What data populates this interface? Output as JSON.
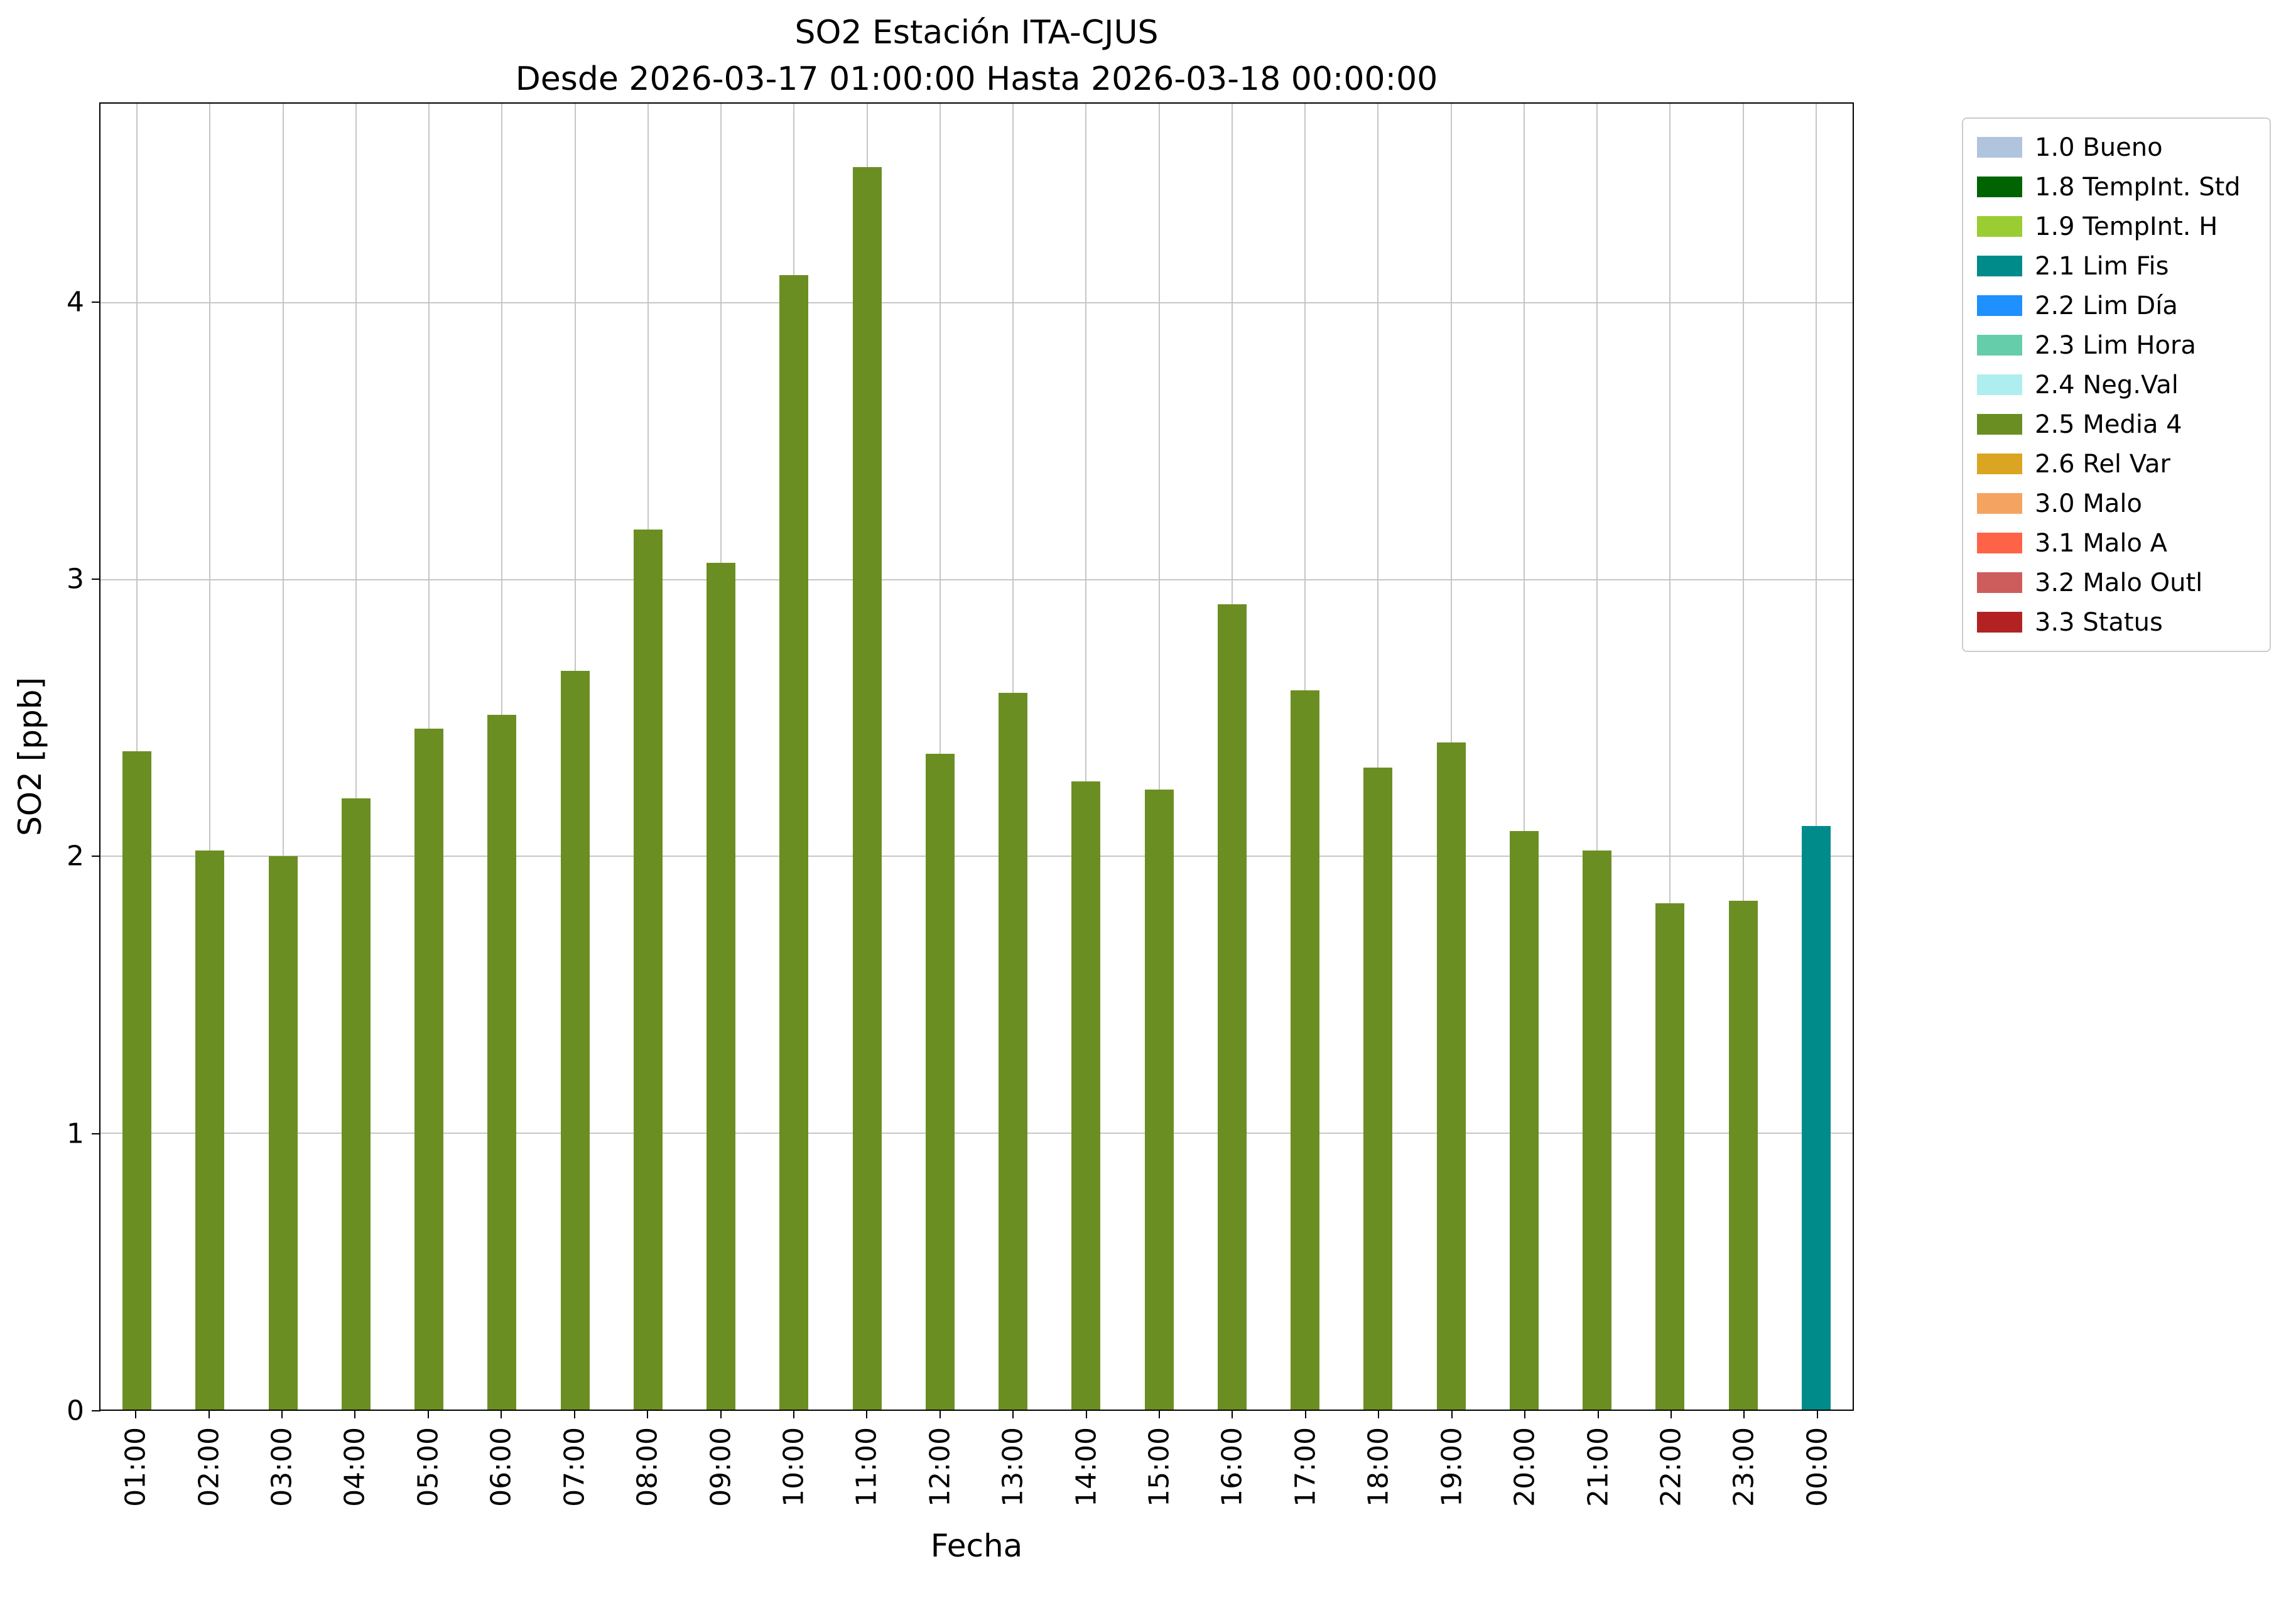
{
  "title": "SO2 Estación ITA-CJUS",
  "subtitle": "Desde 2026-03-17 01:00:00 Hasta 2026-03-18 00:00:00",
  "chart_data": {
    "type": "bar",
    "title": "SO2 Estación ITA-CJUS",
    "subtitle": "Desde 2026-03-17 01:00:00 Hasta 2026-03-18 00:00:00",
    "xlabel": "Fecha",
    "ylabel": "SO2 [ppb]",
    "ylim": [
      0,
      4.72
    ],
    "yticks": [
      0,
      1,
      2,
      3,
      4
    ],
    "grid": true,
    "categories": [
      "01:00",
      "02:00",
      "03:00",
      "04:00",
      "05:00",
      "06:00",
      "07:00",
      "08:00",
      "09:00",
      "10:00",
      "11:00",
      "12:00",
      "13:00",
      "14:00",
      "15:00",
      "16:00",
      "17:00",
      "18:00",
      "19:00",
      "20:00",
      "21:00",
      "22:00",
      "23:00",
      "00:00"
    ],
    "values": [
      2.38,
      2.02,
      2.0,
      2.21,
      2.46,
      2.51,
      2.67,
      3.18,
      3.06,
      4.1,
      4.49,
      2.37,
      2.59,
      2.27,
      2.24,
      2.91,
      2.6,
      2.32,
      2.41,
      2.09,
      2.02,
      1.83,
      1.84,
      2.11
    ],
    "bar_colors": [
      "#6b8e23",
      "#6b8e23",
      "#6b8e23",
      "#6b8e23",
      "#6b8e23",
      "#6b8e23",
      "#6b8e23",
      "#6b8e23",
      "#6b8e23",
      "#6b8e23",
      "#6b8e23",
      "#6b8e23",
      "#6b8e23",
      "#6b8e23",
      "#6b8e23",
      "#6b8e23",
      "#6b8e23",
      "#6b8e23",
      "#6b8e23",
      "#6b8e23",
      "#6b8e23",
      "#6b8e23",
      "#6b8e23",
      "#008b8b"
    ],
    "legend": {
      "position": "upper right outside",
      "entries": [
        {
          "label": "1.0 Bueno",
          "color": "#b0c4de"
        },
        {
          "label": "1.8 TempInt. Std",
          "color": "#006400"
        },
        {
          "label": "1.9 TempInt. H",
          "color": "#9acd32"
        },
        {
          "label": "2.1 Lim Fis",
          "color": "#008b8b"
        },
        {
          "label": "2.2 Lim Día",
          "color": "#1e90ff"
        },
        {
          "label": "2.3 Lim Hora",
          "color": "#66cdaa"
        },
        {
          "label": "2.4 Neg.Val",
          "color": "#afeeee"
        },
        {
          "label": "2.5 Media 4",
          "color": "#6b8e23"
        },
        {
          "label": "2.6 Rel Var",
          "color": "#daa520"
        },
        {
          "label": "3.0 Malo",
          "color": "#f4a460"
        },
        {
          "label": "3.1 Malo A",
          "color": "#ff6347"
        },
        {
          "label": "3.2 Malo Outl",
          "color": "#cd5c5c"
        },
        {
          "label": "3.3 Status",
          "color": "#b22222"
        }
      ]
    }
  }
}
